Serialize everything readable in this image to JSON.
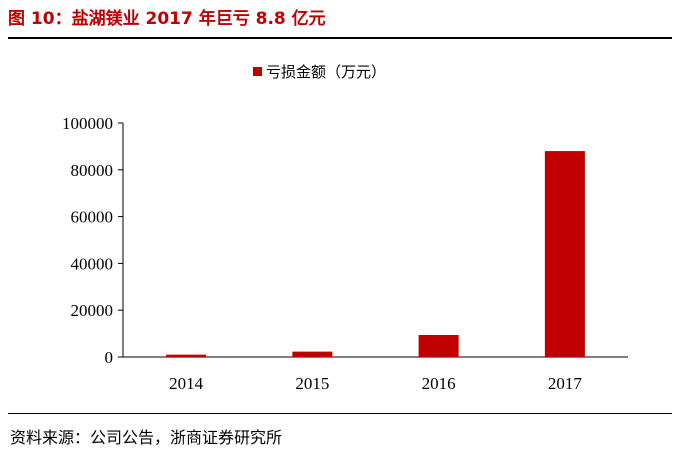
{
  "title": "图 10：盐湖镁业 2017 年巨亏 8.8 亿元",
  "source": "资料来源：公司公告，浙商证券研究所",
  "chart_data": {
    "type": "bar",
    "categories": [
      "2014",
      "2015",
      "2016",
      "2017"
    ],
    "series": [
      {
        "name": "亏损金额（万元）",
        "values": [
          1000,
          2300,
          9400,
          88000
        ],
        "color": "#c00000"
      }
    ],
    "ylim": [
      0,
      100000
    ],
    "yticks": [
      "0",
      "20000",
      "40000",
      "60000",
      "80000",
      "100000"
    ],
    "legend": "top",
    "grid": false
  }
}
